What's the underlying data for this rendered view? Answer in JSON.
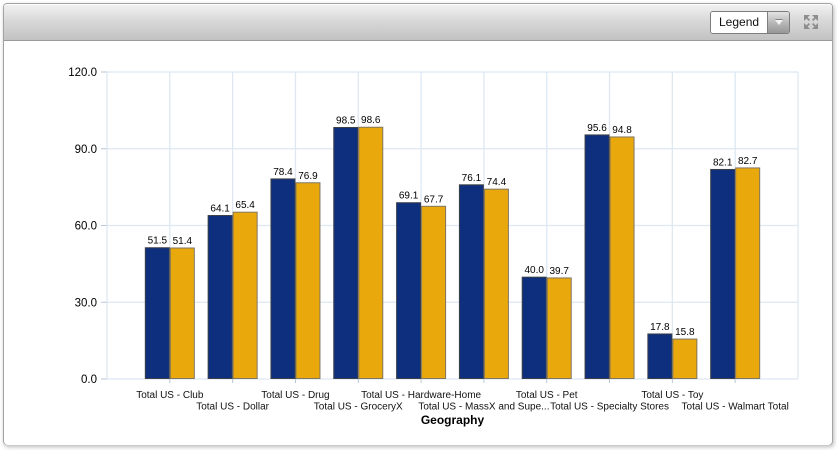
{
  "toolbar": {
    "legend_dropdown": {
      "value": "Legend"
    }
  },
  "chart_data": {
    "type": "bar",
    "title": "",
    "xlabel": "Geography",
    "ylabel": "",
    "ylim": [
      0,
      120
    ],
    "ytick_labels": [
      "0.0",
      "30.0",
      "60.0",
      "90.0",
      "120.0"
    ],
    "yticks": [
      0,
      30,
      60,
      90,
      120
    ],
    "grid": true,
    "legend_position": "collapsed-dropdown",
    "value_labels": true,
    "categories": [
      "Total US - Club",
      "Total US - Dollar",
      "Total US - Drug",
      "Total US - GroceryX",
      "Total US - Hardware-Home",
      "Total US - MassX and Supe...",
      "Total US - Pet",
      "Total US - Specialty Stores",
      "Total US - Toy",
      "Total US - Walmart Total"
    ],
    "series": [
      {
        "color": "#0D2F7D",
        "values": [
          51.5,
          64.1,
          78.4,
          98.5,
          69.1,
          76.1,
          40.0,
          95.6,
          17.8,
          82.1
        ]
      },
      {
        "color": "#E9A90C",
        "values": [
          51.4,
          65.4,
          76.9,
          98.6,
          67.7,
          74.4,
          39.7,
          94.8,
          15.8,
          82.7
        ]
      }
    ]
  },
  "colors": {
    "gridline": "#dde8f2",
    "axis_tick": "#b9c6d4",
    "bar1_stroke": "#3c4048",
    "bar2_stroke": "#807660",
    "label_text": "#000000"
  }
}
